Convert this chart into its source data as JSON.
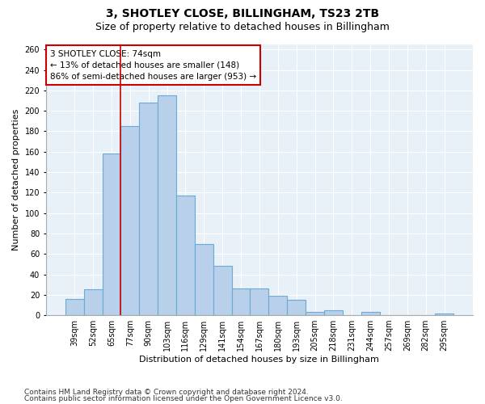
{
  "title": "3, SHOTLEY CLOSE, BILLINGHAM, TS23 2TB",
  "subtitle": "Size of property relative to detached houses in Billingham",
  "xlabel": "Distribution of detached houses by size in Billingham",
  "ylabel": "Number of detached properties",
  "categories": [
    "39sqm",
    "52sqm",
    "65sqm",
    "77sqm",
    "90sqm",
    "103sqm",
    "116sqm",
    "129sqm",
    "141sqm",
    "154sqm",
    "167sqm",
    "180sqm",
    "193sqm",
    "205sqm",
    "218sqm",
    "231sqm",
    "244sqm",
    "257sqm",
    "269sqm",
    "282sqm",
    "295sqm"
  ],
  "values": [
    16,
    25,
    158,
    185,
    208,
    215,
    117,
    70,
    48,
    26,
    26,
    19,
    15,
    3,
    5,
    0,
    3,
    0,
    0,
    0,
    2
  ],
  "bar_color": "#b8d0ea",
  "bar_edge_color": "#6aaad4",
  "bar_edge_width": 0.8,
  "vline_x": 2.5,
  "vline_color": "#cc0000",
  "vline_linewidth": 1.2,
  "annotation_text": "3 SHOTLEY CLOSE: 74sqm\n← 13% of detached houses are smaller (148)\n86% of semi-detached houses are larger (953) →",
  "annotation_box_color": "#ffffff",
  "annotation_box_edgecolor": "#cc0000",
  "ylim": [
    0,
    265
  ],
  "yticks": [
    0,
    20,
    40,
    60,
    80,
    100,
    120,
    140,
    160,
    180,
    200,
    220,
    240,
    260
  ],
  "bg_color": "#e8f0f8",
  "grid_color": "#ffffff",
  "footer_line1": "Contains HM Land Registry data © Crown copyright and database right 2024.",
  "footer_line2": "Contains public sector information licensed under the Open Government Licence v3.0.",
  "title_fontsize": 10,
  "subtitle_fontsize": 9,
  "xlabel_fontsize": 8,
  "ylabel_fontsize": 8,
  "tick_fontsize": 7,
  "annotation_fontsize": 7.5,
  "footer_fontsize": 6.5
}
